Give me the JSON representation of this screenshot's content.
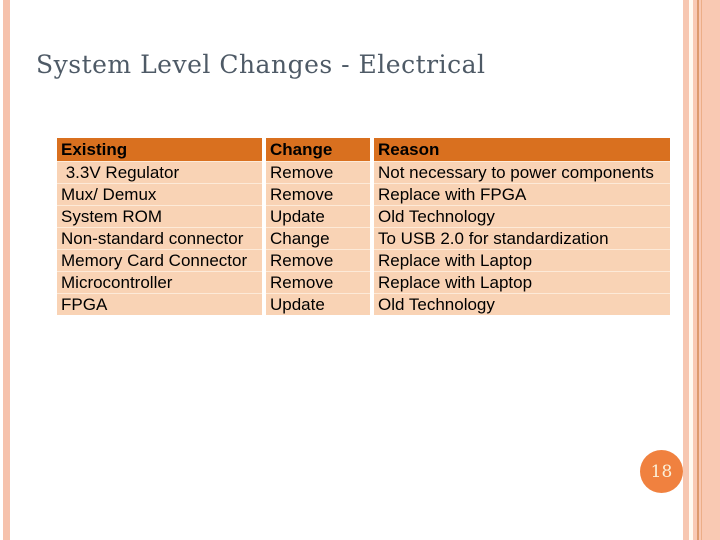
{
  "slide": {
    "title": "System Level Changes - Electrical",
    "page_number": "18"
  },
  "table": {
    "columns": [
      "Existing",
      "Change",
      "Reason"
    ],
    "rows": [
      [
        " 3.3V Regulator",
        "Remove",
        "Not necessary to power components"
      ],
      [
        "Mux/ Demux",
        "Remove",
        "Replace with FPGA"
      ],
      [
        "System ROM",
        "Update",
        "Old Technology"
      ],
      [
        "Non-standard connector",
        "Change",
        "To USB 2.0 for standardization"
      ],
      [
        "Memory Card Connector",
        "Remove",
        "Replace with Laptop"
      ],
      [
        "Microcontroller",
        "Remove",
        "Replace with Laptop"
      ],
      [
        "FPGA",
        "Update",
        "Old Technology"
      ]
    ]
  },
  "colors": {
    "header_bg": "#d9701f",
    "row_bg": "#f9d3b5",
    "accent_stripe": "#f6c2ac",
    "page_circle": "#f0813f",
    "title_text": "#4e5a66"
  }
}
